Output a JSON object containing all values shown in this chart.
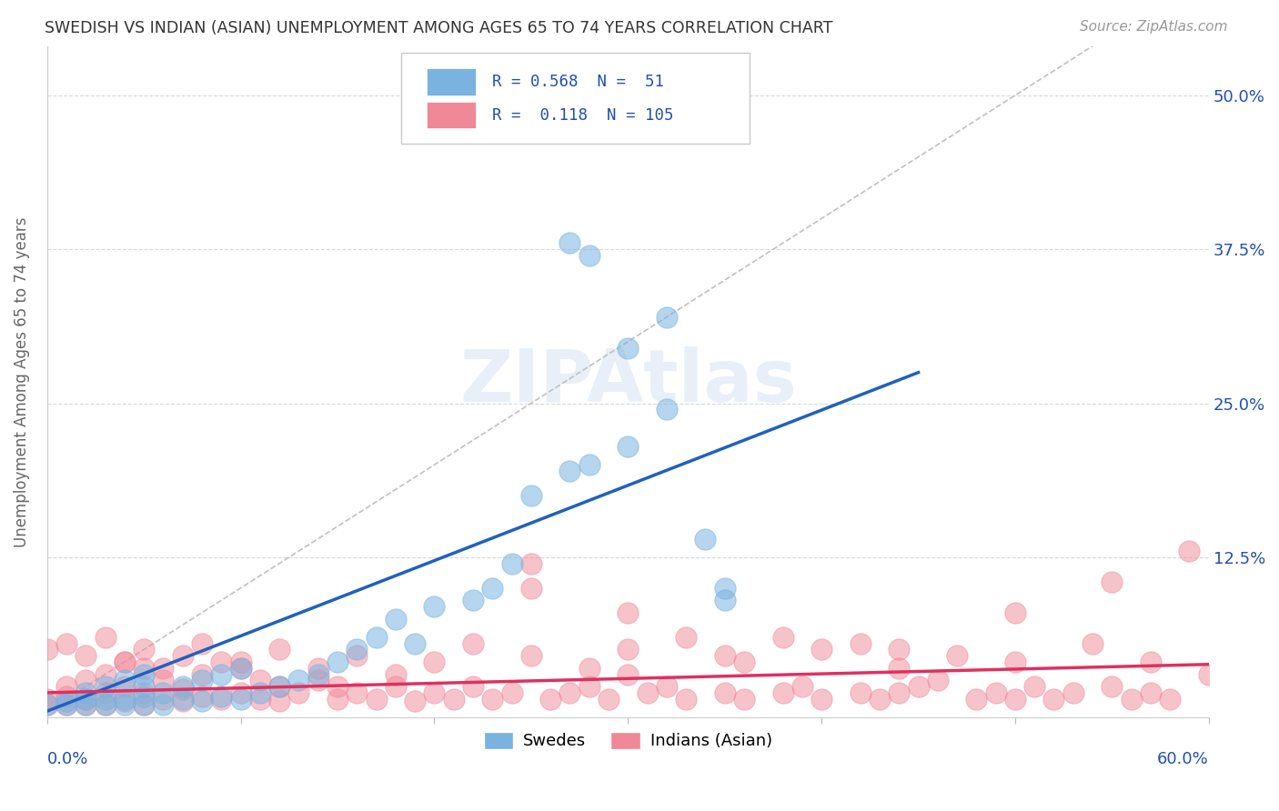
{
  "title": "SWEDISH VS INDIAN (ASIAN) UNEMPLOYMENT AMONG AGES 65 TO 74 YEARS CORRELATION CHART",
  "source": "Source: ZipAtlas.com",
  "ylabel": "Unemployment Among Ages 65 to 74 years",
  "right_yticks": [
    0.0,
    0.125,
    0.25,
    0.375,
    0.5
  ],
  "right_yticklabels": [
    "",
    "12.5%",
    "25.0%",
    "37.5%",
    "50.0%"
  ],
  "xmin": 0.0,
  "xmax": 0.6,
  "ymin": -0.005,
  "ymax": 0.54,
  "swedish_color": "#7ab3e0",
  "indian_color": "#f08898",
  "swedish_line_color": "#2060c0",
  "indian_line_color": "#e03060",
  "diagonal_color": "#c0c0c0",
  "legend_text_color": "#2050b0",
  "legend_r_color": "#2050b0",
  "watermark_color": "#ccddf0",
  "background_color": "#ffffff",
  "grid_color": "#d8d8d8",
  "swedish_points_x": [
    0.0,
    0.01,
    0.01,
    0.02,
    0.02,
    0.02,
    0.03,
    0.03,
    0.03,
    0.04,
    0.04,
    0.04,
    0.05,
    0.05,
    0.05,
    0.05,
    0.06,
    0.06,
    0.07,
    0.07,
    0.08,
    0.08,
    0.09,
    0.09,
    0.1,
    0.1,
    0.11,
    0.12,
    0.13,
    0.14,
    0.15,
    0.16,
    0.17,
    0.18,
    0.19,
    0.2,
    0.22,
    0.23,
    0.24,
    0.25,
    0.27,
    0.28,
    0.3,
    0.32,
    0.28,
    0.32,
    0.3,
    0.27,
    0.34,
    0.35,
    0.35
  ],
  "swedish_points_y": [
    0.005,
    0.005,
    0.008,
    0.005,
    0.01,
    0.015,
    0.005,
    0.01,
    0.02,
    0.005,
    0.01,
    0.025,
    0.005,
    0.012,
    0.02,
    0.03,
    0.005,
    0.015,
    0.01,
    0.02,
    0.008,
    0.025,
    0.012,
    0.03,
    0.01,
    0.035,
    0.015,
    0.02,
    0.025,
    0.03,
    0.04,
    0.05,
    0.06,
    0.075,
    0.055,
    0.085,
    0.09,
    0.1,
    0.12,
    0.175,
    0.195,
    0.2,
    0.215,
    0.245,
    0.37,
    0.32,
    0.295,
    0.38,
    0.14,
    0.09,
    0.1
  ],
  "indian_points_x": [
    0.0,
    0.0,
    0.01,
    0.01,
    0.01,
    0.02,
    0.02,
    0.02,
    0.03,
    0.03,
    0.03,
    0.04,
    0.04,
    0.04,
    0.05,
    0.05,
    0.05,
    0.06,
    0.06,
    0.07,
    0.07,
    0.07,
    0.08,
    0.08,
    0.09,
    0.09,
    0.1,
    0.1,
    0.11,
    0.11,
    0.12,
    0.12,
    0.13,
    0.14,
    0.15,
    0.15,
    0.16,
    0.17,
    0.18,
    0.19,
    0.2,
    0.21,
    0.22,
    0.23,
    0.24,
    0.25,
    0.26,
    0.27,
    0.28,
    0.29,
    0.3,
    0.31,
    0.32,
    0.33,
    0.35,
    0.36,
    0.38,
    0.39,
    0.4,
    0.42,
    0.43,
    0.44,
    0.45,
    0.46,
    0.48,
    0.49,
    0.5,
    0.51,
    0.52,
    0.53,
    0.55,
    0.56,
    0.57,
    0.58,
    0.59,
    0.0,
    0.01,
    0.02,
    0.03,
    0.04,
    0.05,
    0.06,
    0.08,
    0.1,
    0.12,
    0.14,
    0.16,
    0.18,
    0.2,
    0.22,
    0.25,
    0.28,
    0.3,
    0.33,
    0.36,
    0.4,
    0.44,
    0.47,
    0.5,
    0.54,
    0.57,
    0.6,
    0.25,
    0.5,
    0.55,
    0.38,
    0.42,
    0.44,
    0.35,
    0.3
  ],
  "indian_points_y": [
    0.005,
    0.01,
    0.005,
    0.012,
    0.02,
    0.005,
    0.01,
    0.025,
    0.005,
    0.015,
    0.03,
    0.008,
    0.02,
    0.04,
    0.005,
    0.015,
    0.035,
    0.01,
    0.025,
    0.008,
    0.018,
    0.045,
    0.012,
    0.03,
    0.01,
    0.04,
    0.015,
    0.035,
    0.01,
    0.025,
    0.008,
    0.02,
    0.015,
    0.025,
    0.01,
    0.02,
    0.015,
    0.01,
    0.02,
    0.008,
    0.015,
    0.01,
    0.02,
    0.01,
    0.015,
    0.12,
    0.01,
    0.015,
    0.02,
    0.01,
    0.08,
    0.015,
    0.02,
    0.01,
    0.015,
    0.01,
    0.015,
    0.02,
    0.01,
    0.015,
    0.01,
    0.015,
    0.02,
    0.025,
    0.01,
    0.015,
    0.01,
    0.02,
    0.01,
    0.015,
    0.02,
    0.01,
    0.015,
    0.01,
    0.13,
    0.05,
    0.055,
    0.045,
    0.06,
    0.04,
    0.05,
    0.035,
    0.055,
    0.04,
    0.05,
    0.035,
    0.045,
    0.03,
    0.04,
    0.055,
    0.045,
    0.035,
    0.05,
    0.06,
    0.04,
    0.05,
    0.035,
    0.045,
    0.04,
    0.055,
    0.04,
    0.03,
    0.1,
    0.08,
    0.105,
    0.06,
    0.055,
    0.05,
    0.045,
    0.03
  ],
  "sw_line_x": [
    0.0,
    0.45
  ],
  "sw_line_y": [
    0.0,
    0.275
  ],
  "in_line_x": [
    0.0,
    0.6
  ],
  "in_line_y": [
    0.015,
    0.038
  ]
}
